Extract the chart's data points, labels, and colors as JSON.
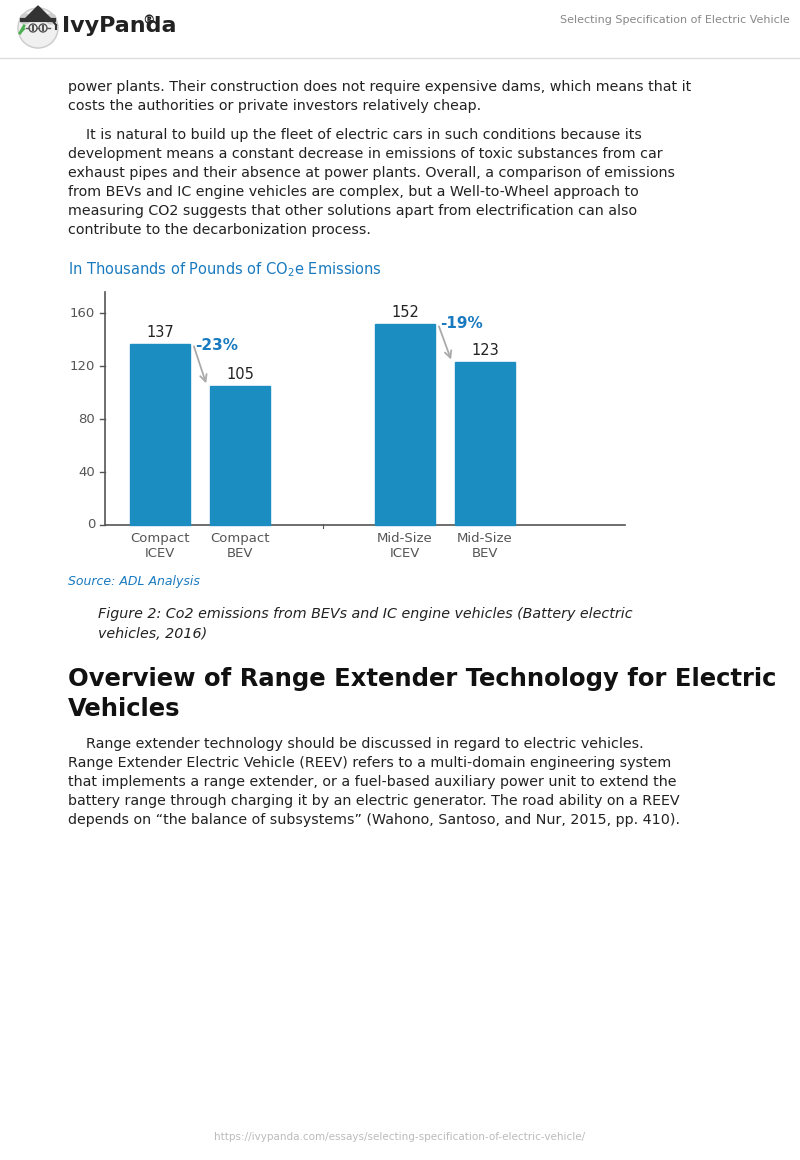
{
  "page_title": "Selecting Specification of Electric Vehicle",
  "footer_url": "https://ivypanda.com/essays/selecting-specification-of-electric-vehicle/",
  "paragraph1_lines": [
    "power plants. Their construction does not require expensive dams, which means that it",
    "costs the authorities or private investors relatively cheap."
  ],
  "paragraph2_lines": [
    "    It is natural to build up the fleet of electric cars in such conditions because its",
    "development means a constant decrease in emissions of toxic substances from car",
    "exhaust pipes and their absence at power plants. Overall, a comparison of emissions",
    "from BEVs and IC engine vehicles are complex, but a Well-to-Wheel approach to",
    "measuring CO2 suggests that other solutions apart from electrification can also",
    "contribute to the decarbonization process."
  ],
  "chart_title_color": "#1a7abf",
  "bar_color": "#1c8dc1",
  "categories": [
    "Compact\nICEV",
    "Compact\nBEV",
    "Mid-Size\nICEV",
    "Mid-Size\nBEV"
  ],
  "values": [
    137,
    105,
    152,
    123
  ],
  "ylim": [
    0,
    170
  ],
  "yticks": [
    0,
    40,
    80,
    120,
    160
  ],
  "pct_labels": [
    "-23%",
    "-19%"
  ],
  "pct_label_color": "#1a7abf",
  "source_text": "Source: ADL Analysis",
  "source_color": "#1a7abf",
  "figure_caption_lines": [
    "Figure 2: Co2 emissions from BEVs and IC engine vehicles (Battery electric",
    "vehicles, 2016)"
  ],
  "section_title_lines": [
    "Overview of Range Extender Technology for Electric",
    "Vehicles"
  ],
  "body_text_lines": [
    "    Range extender technology should be discussed in regard to electric vehicles.",
    "Range Extender Electric Vehicle (REEV) refers to a multi-domain engineering system",
    "that implements a range extender, or a fuel-based auxiliary power unit to extend the",
    "battery range through charging it by an electric generator. The road ability on a REEV",
    "depends on “the balance of subsystems” (Wahono, Santoso, and Nur, 2015, pp. 410)."
  ],
  "background_color": "#ffffff",
  "text_color": "#222222",
  "arrow_color": "#999999",
  "header_line_color": "#dddddd",
  "axis_color": "#555555",
  "tick_label_color": "#555555"
}
